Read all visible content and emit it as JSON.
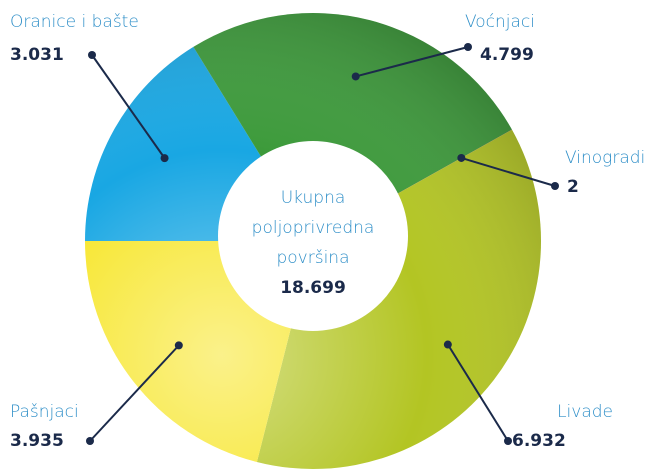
{
  "chart_data": {
    "type": "pie",
    "categories": [
      "Oranice i bašte",
      "Voćnjaci",
      "Vinogradi",
      "Livade",
      "Pašnjaci"
    ],
    "values": [
      3031,
      4799,
      2,
      6932,
      3935
    ],
    "value_labels": [
      "3.031",
      "4.799",
      "2",
      "6.932",
      "3.935"
    ],
    "colors": [
      "#19a7e3",
      "#3c9a3a",
      "#c4222a",
      "#b3c523",
      "#f7e62b"
    ],
    "center_label": [
      "Ukupna",
      "poljoprivredna",
      "površina"
    ],
    "total": 18699,
    "total_label": "18.699"
  }
}
